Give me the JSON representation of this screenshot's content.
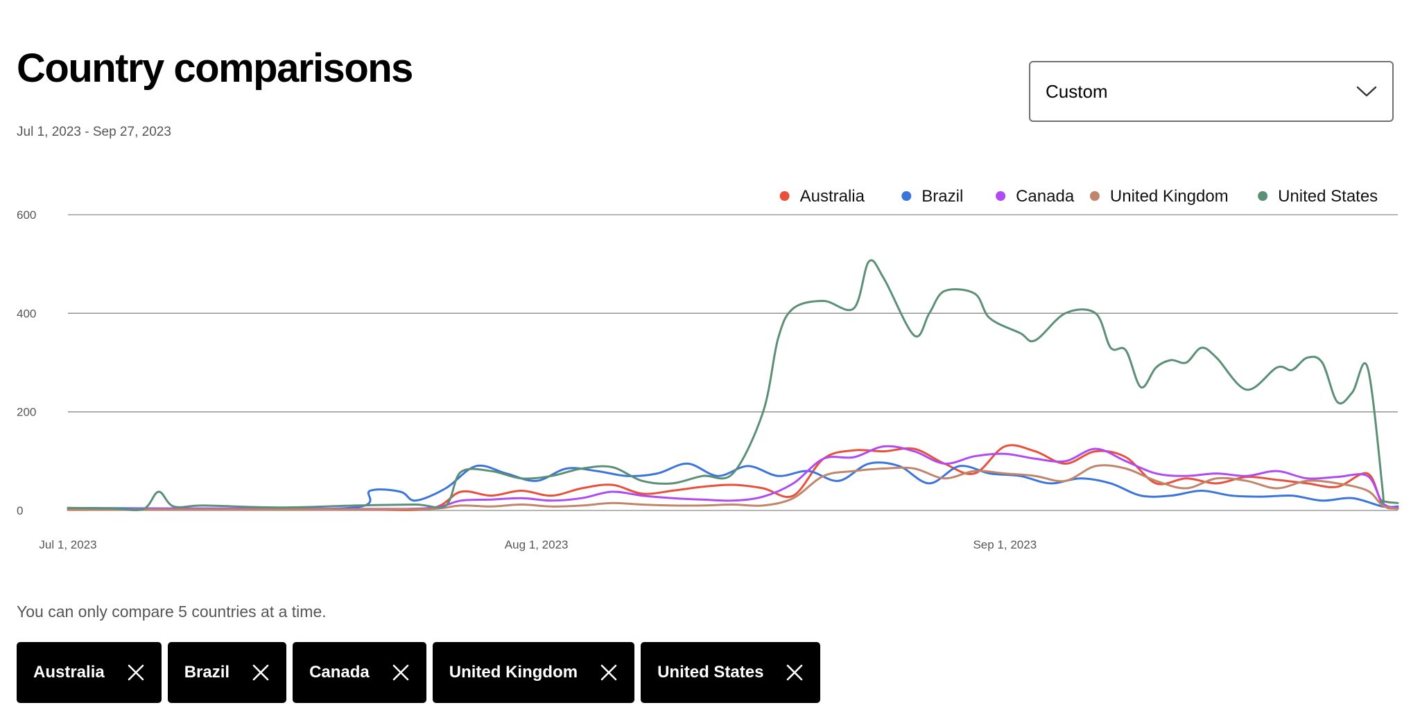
{
  "header": {
    "title": "Country comparisons",
    "date_range": "Jul 1, 2023 - Sep 27, 2023"
  },
  "dropdown": {
    "selected": "Custom"
  },
  "note": "You can only compare 5 countries at a time.",
  "chips": [
    {
      "label": "Australia"
    },
    {
      "label": "Brazil"
    },
    {
      "label": "Canada"
    },
    {
      "label": "United Kingdom"
    },
    {
      "label": "United States"
    }
  ],
  "chart_data": {
    "type": "line",
    "xlabel": "",
    "ylabel": "",
    "x_start": "Jul 1, 2023",
    "x_end": "Sep 27, 2023",
    "x_ticks": [
      {
        "date": "Jul 1, 2023",
        "label": "Jul 1, 2023"
      },
      {
        "date": "Aug 1, 2023",
        "label": "Aug 1, 2023"
      },
      {
        "date": "Sep 1, 2023",
        "label": "Sep 1, 2023"
      }
    ],
    "ylim": [
      0,
      600
    ],
    "y_ticks": [
      0,
      200,
      400,
      600
    ],
    "grid": true,
    "legend_position": "top-right",
    "series": [
      {
        "name": "Australia",
        "color": "#E8503C",
        "points": [
          [
            "Jul 1, 2023",
            2
          ],
          [
            "Jul 10, 2023",
            3
          ],
          [
            "Jul 20, 2023",
            2
          ],
          [
            "Jul 25, 2023",
            4
          ],
          [
            "Jul 27, 2023",
            38
          ],
          [
            "Jul 29, 2023",
            30
          ],
          [
            "Jul 31, 2023",
            40
          ],
          [
            "Aug 2, 2023",
            30
          ],
          [
            "Aug 4, 2023",
            45
          ],
          [
            "Aug 6, 2023",
            52
          ],
          [
            "Aug 8, 2023",
            34
          ],
          [
            "Aug 10, 2023",
            40
          ],
          [
            "Aug 12, 2023",
            48
          ],
          [
            "Aug 14, 2023",
            52
          ],
          [
            "Aug 16, 2023",
            45
          ],
          [
            "Aug 18, 2023",
            30
          ],
          [
            "Aug 20, 2023",
            105
          ],
          [
            "Aug 22, 2023",
            122
          ],
          [
            "Aug 24, 2023",
            120
          ],
          [
            "Aug 26, 2023",
            125
          ],
          [
            "Aug 28, 2023",
            95
          ],
          [
            "Aug 30, 2023",
            75
          ],
          [
            "Sep 1, 2023",
            130
          ],
          [
            "Sep 3, 2023",
            120
          ],
          [
            "Sep 5, 2023",
            95
          ],
          [
            "Sep 7, 2023",
            120
          ],
          [
            "Sep 9, 2023",
            108
          ],
          [
            "Sep 11, 2023",
            55
          ],
          [
            "Sep 13, 2023",
            65
          ],
          [
            "Sep 15, 2023",
            55
          ],
          [
            "Sep 17, 2023",
            68
          ],
          [
            "Sep 19, 2023",
            62
          ],
          [
            "Sep 21, 2023",
            55
          ],
          [
            "Sep 23, 2023",
            48
          ],
          [
            "Sep 25, 2023",
            75
          ],
          [
            "Sep 26, 2023",
            12
          ],
          [
            "Sep 27, 2023",
            4
          ]
        ]
      },
      {
        "name": "Brazil",
        "color": "#3B75DB",
        "points": [
          [
            "Jul 1, 2023",
            5
          ],
          [
            "Jul 10, 2023",
            4
          ],
          [
            "Jul 20, 2023",
            6
          ],
          [
            "Jul 21, 2023",
            40
          ],
          [
            "Jul 23, 2023",
            38
          ],
          [
            "Jul 24, 2023",
            20
          ],
          [
            "Jul 26, 2023",
            45
          ],
          [
            "Jul 28, 2023",
            90
          ],
          [
            "Jul 30, 2023",
            75
          ],
          [
            "Aug 1, 2023",
            60
          ],
          [
            "Aug 3, 2023",
            85
          ],
          [
            "Aug 5, 2023",
            80
          ],
          [
            "Aug 7, 2023",
            70
          ],
          [
            "Aug 9, 2023",
            75
          ],
          [
            "Aug 11, 2023",
            95
          ],
          [
            "Aug 13, 2023",
            70
          ],
          [
            "Aug 15, 2023",
            90
          ],
          [
            "Aug 17, 2023",
            70
          ],
          [
            "Aug 19, 2023",
            80
          ],
          [
            "Aug 21, 2023",
            60
          ],
          [
            "Aug 23, 2023",
            95
          ],
          [
            "Aug 25, 2023",
            90
          ],
          [
            "Aug 27, 2023",
            55
          ],
          [
            "Aug 29, 2023",
            90
          ],
          [
            "Aug 31, 2023",
            75
          ],
          [
            "Sep 2, 2023",
            70
          ],
          [
            "Sep 4, 2023",
            55
          ],
          [
            "Sep 6, 2023",
            65
          ],
          [
            "Sep 8, 2023",
            55
          ],
          [
            "Sep 10, 2023",
            30
          ],
          [
            "Sep 12, 2023",
            30
          ],
          [
            "Sep 14, 2023",
            40
          ],
          [
            "Sep 16, 2023",
            30
          ],
          [
            "Sep 18, 2023",
            28
          ],
          [
            "Sep 20, 2023",
            30
          ],
          [
            "Sep 22, 2023",
            20
          ],
          [
            "Sep 24, 2023",
            25
          ],
          [
            "Sep 26, 2023",
            8
          ],
          [
            "Sep 27, 2023",
            8
          ]
        ]
      },
      {
        "name": "Canada",
        "color": "#B04AF2",
        "points": [
          [
            "Jul 1, 2023",
            2
          ],
          [
            "Jul 10, 2023",
            4
          ],
          [
            "Jul 20, 2023",
            3
          ],
          [
            "Jul 25, 2023",
            5
          ],
          [
            "Jul 27, 2023",
            20
          ],
          [
            "Jul 29, 2023",
            22
          ],
          [
            "Jul 31, 2023",
            25
          ],
          [
            "Aug 2, 2023",
            20
          ],
          [
            "Aug 4, 2023",
            25
          ],
          [
            "Aug 6, 2023",
            38
          ],
          [
            "Aug 8, 2023",
            30
          ],
          [
            "Aug 10, 2023",
            25
          ],
          [
            "Aug 12, 2023",
            22
          ],
          [
            "Aug 14, 2023",
            20
          ],
          [
            "Aug 16, 2023",
            28
          ],
          [
            "Aug 18, 2023",
            55
          ],
          [
            "Aug 20, 2023",
            105
          ],
          [
            "Aug 22, 2023",
            108
          ],
          [
            "Aug 24, 2023",
            130
          ],
          [
            "Aug 26, 2023",
            120
          ],
          [
            "Aug 28, 2023",
            95
          ],
          [
            "Aug 30, 2023",
            110
          ],
          [
            "Sep 1, 2023",
            115
          ],
          [
            "Sep 3, 2023",
            105
          ],
          [
            "Sep 5, 2023",
            100
          ],
          [
            "Sep 7, 2023",
            125
          ],
          [
            "Sep 9, 2023",
            100
          ],
          [
            "Sep 11, 2023",
            75
          ],
          [
            "Sep 13, 2023",
            70
          ],
          [
            "Sep 15, 2023",
            75
          ],
          [
            "Sep 17, 2023",
            70
          ],
          [
            "Sep 19, 2023",
            80
          ],
          [
            "Sep 21, 2023",
            65
          ],
          [
            "Sep 23, 2023",
            68
          ],
          [
            "Sep 25, 2023",
            70
          ],
          [
            "Sep 26, 2023",
            15
          ],
          [
            "Sep 27, 2023",
            5
          ]
        ]
      },
      {
        "name": "United Kingdom",
        "color": "#C0856A",
        "points": [
          [
            "Jul 1, 2023",
            1
          ],
          [
            "Jul 10, 2023",
            2
          ],
          [
            "Jul 20, 2023",
            2
          ],
          [
            "Jul 25, 2023",
            3
          ],
          [
            "Jul 27, 2023",
            10
          ],
          [
            "Jul 29, 2023",
            8
          ],
          [
            "Jul 31, 2023",
            12
          ],
          [
            "Aug 2, 2023",
            8
          ],
          [
            "Aug 4, 2023",
            10
          ],
          [
            "Aug 6, 2023",
            15
          ],
          [
            "Aug 8, 2023",
            12
          ],
          [
            "Aug 10, 2023",
            10
          ],
          [
            "Aug 12, 2023",
            10
          ],
          [
            "Aug 14, 2023",
            12
          ],
          [
            "Aug 16, 2023",
            10
          ],
          [
            "Aug 18, 2023",
            25
          ],
          [
            "Aug 20, 2023",
            70
          ],
          [
            "Aug 22, 2023",
            80
          ],
          [
            "Aug 24, 2023",
            85
          ],
          [
            "Aug 26, 2023",
            85
          ],
          [
            "Aug 28, 2023",
            65
          ],
          [
            "Aug 30, 2023",
            80
          ],
          [
            "Sep 1, 2023",
            75
          ],
          [
            "Sep 3, 2023",
            70
          ],
          [
            "Sep 5, 2023",
            60
          ],
          [
            "Sep 7, 2023",
            90
          ],
          [
            "Sep 9, 2023",
            85
          ],
          [
            "Sep 11, 2023",
            60
          ],
          [
            "Sep 13, 2023",
            45
          ],
          [
            "Sep 15, 2023",
            65
          ],
          [
            "Sep 17, 2023",
            60
          ],
          [
            "Sep 19, 2023",
            45
          ],
          [
            "Sep 21, 2023",
            60
          ],
          [
            "Sep 23, 2023",
            55
          ],
          [
            "Sep 25, 2023",
            40
          ],
          [
            "Sep 26, 2023",
            10
          ],
          [
            "Sep 27, 2023",
            3
          ]
        ]
      },
      {
        "name": "United States",
        "color": "#5B8F76",
        "points": [
          [
            "Jul 1, 2023",
            5
          ],
          [
            "Jul 4, 2023",
            4
          ],
          [
            "Jul 6, 2023",
            3
          ],
          [
            "Jul 7, 2023",
            38
          ],
          [
            "Jul 8, 2023",
            8
          ],
          [
            "Jul 10, 2023",
            10
          ],
          [
            "Jul 15, 2023",
            6
          ],
          [
            "Jul 20, 2023",
            10
          ],
          [
            "Jul 24, 2023",
            12
          ],
          [
            "Jul 26, 2023",
            10
          ],
          [
            "Jul 27, 2023",
            78
          ],
          [
            "Jul 29, 2023",
            80
          ],
          [
            "Jul 31, 2023",
            65
          ],
          [
            "Aug 2, 2023",
            70
          ],
          [
            "Aug 4, 2023",
            85
          ],
          [
            "Aug 6, 2023",
            88
          ],
          [
            "Aug 8, 2023",
            60
          ],
          [
            "Aug 10, 2023",
            55
          ],
          [
            "Aug 12, 2023",
            70
          ],
          [
            "Aug 14, 2023",
            75
          ],
          [
            "Aug 16, 2023",
            200
          ],
          [
            "Aug 17, 2023",
            350
          ],
          [
            "Aug 18, 2023",
            410
          ],
          [
            "Aug 20, 2023",
            425
          ],
          [
            "Aug 22, 2023",
            410
          ],
          [
            "Aug 23, 2023",
            505
          ],
          [
            "Aug 24, 2023",
            470
          ],
          [
            "Aug 26, 2023",
            355
          ],
          [
            "Aug 27, 2023",
            400
          ],
          [
            "Aug 28, 2023",
            445
          ],
          [
            "Aug 30, 2023",
            440
          ],
          [
            "Aug 31, 2023",
            390
          ],
          [
            "Sep 2, 2023",
            360
          ],
          [
            "Sep 3, 2023",
            345
          ],
          [
            "Sep 5, 2023",
            400
          ],
          [
            "Sep 7, 2023",
            400
          ],
          [
            "Sep 8, 2023",
            330
          ],
          [
            "Sep 9, 2023",
            325
          ],
          [
            "Sep 10, 2023",
            250
          ],
          [
            "Sep 11, 2023",
            290
          ],
          [
            "Sep 12, 2023",
            305
          ],
          [
            "Sep 13, 2023",
            300
          ],
          [
            "Sep 14, 2023",
            330
          ],
          [
            "Sep 15, 2023",
            310
          ],
          [
            "Sep 17, 2023",
            245
          ],
          [
            "Sep 19, 2023",
            290
          ],
          [
            "Sep 20, 2023",
            285
          ],
          [
            "Sep 21, 2023",
            310
          ],
          [
            "Sep 22, 2023",
            300
          ],
          [
            "Sep 23, 2023",
            220
          ],
          [
            "Sep 24, 2023",
            240
          ],
          [
            "Sep 25, 2023",
            290
          ],
          [
            "Sep 26, 2023",
            40
          ],
          [
            "Sep 26, 2023",
            20
          ],
          [
            "Sep 27, 2023",
            15
          ]
        ]
      }
    ]
  }
}
